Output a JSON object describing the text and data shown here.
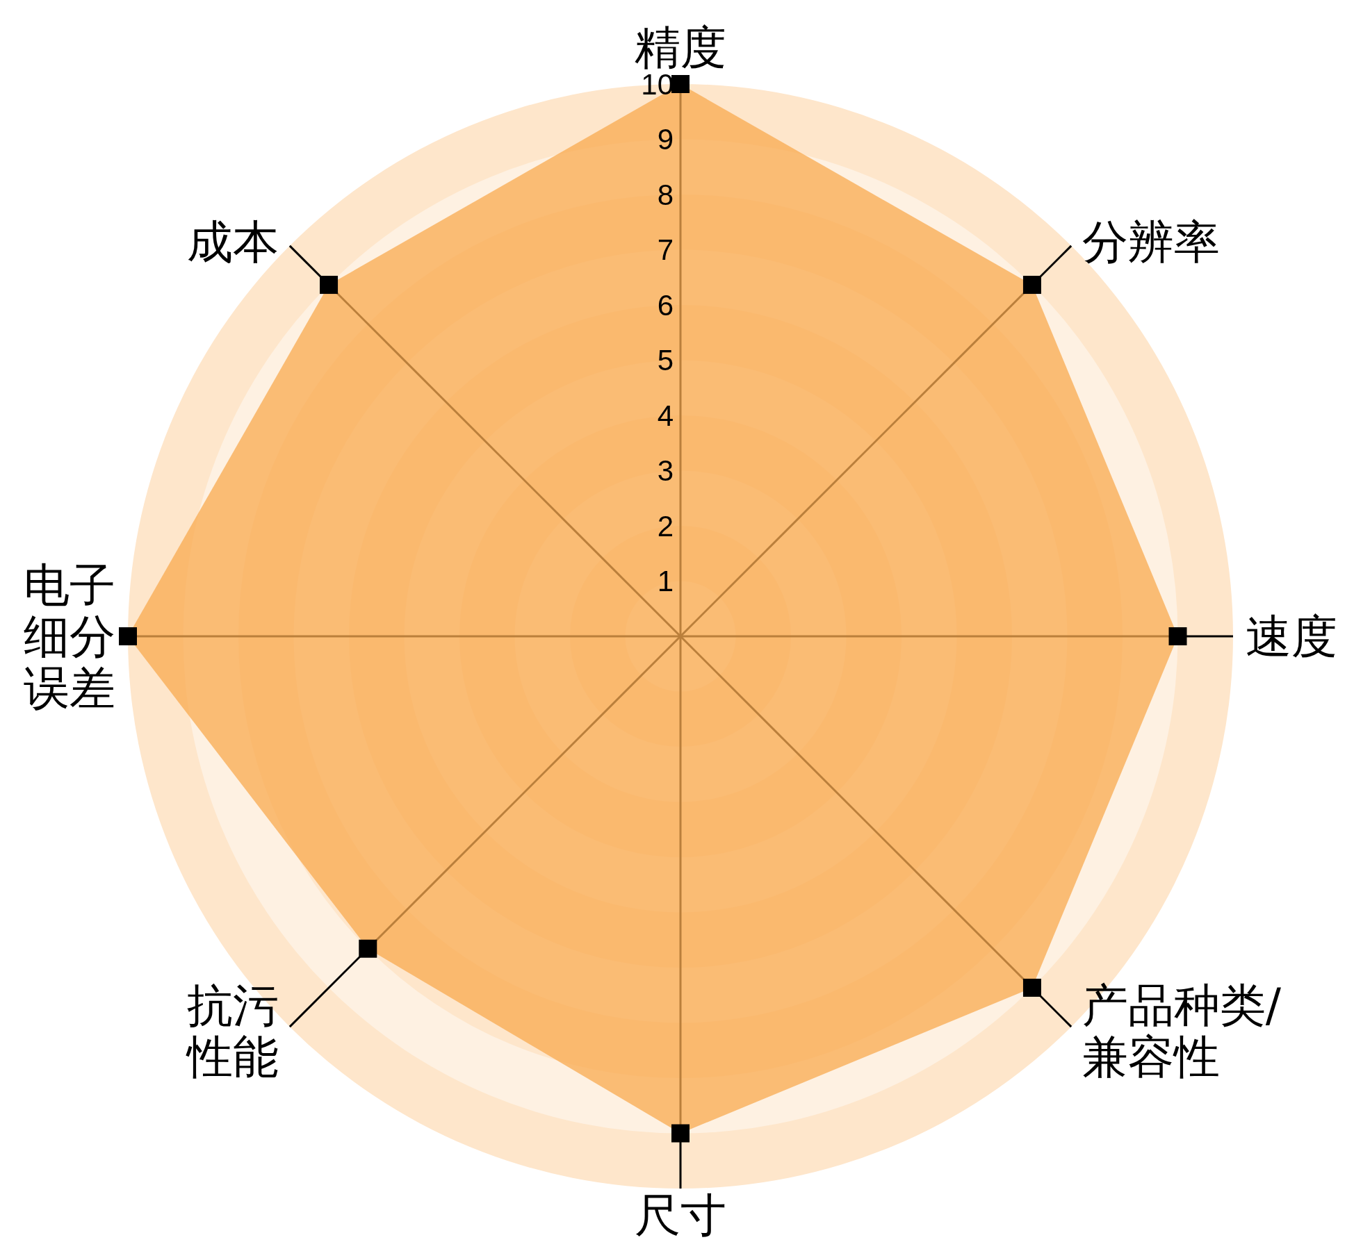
{
  "chart_data": {
    "type": "radar",
    "categories": [
      "精度",
      "分辨率",
      "速度",
      "产品种类/兼容性",
      "尺寸",
      "抗污性能",
      "电子细分误差",
      "成本"
    ],
    "series": [
      {
        "color": "#f8a94f",
        "values": [
          10,
          9,
          9,
          9,
          9,
          8,
          10,
          9
        ]
      }
    ],
    "ylim": [
      0,
      10
    ],
    "yticks": [
      1,
      2,
      3,
      4,
      5,
      6,
      7,
      8,
      9,
      10
    ],
    "grid": true,
    "marker": "square"
  }
}
